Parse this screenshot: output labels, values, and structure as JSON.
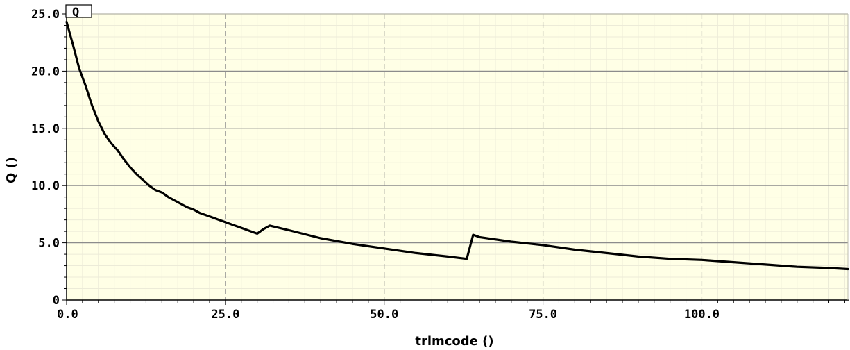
{
  "chart_data": {
    "type": "line",
    "xlabel": "trimcode ()",
    "ylabel": "Q ()",
    "xlim": [
      0,
      123
    ],
    "ylim": [
      0,
      25
    ],
    "x_ticks": [
      0,
      25,
      50,
      75,
      100
    ],
    "x_tick_labels": [
      "0.0",
      "25.0",
      "50.0",
      "75.0",
      "100.0"
    ],
    "y_ticks": [
      0,
      5,
      10,
      15,
      20,
      25
    ],
    "y_tick_labels": [
      "0",
      "5.0",
      "10.0",
      "15.0",
      "20.0",
      "25.0"
    ],
    "grid": true,
    "legend_position": "top-left",
    "series": [
      {
        "name": "Q",
        "color": "#000000",
        "x": [
          0,
          1,
          2,
          3,
          4,
          5,
          6,
          7,
          8,
          9,
          10,
          11,
          12,
          13,
          14,
          15,
          16,
          17,
          18,
          19,
          20,
          21,
          22,
          23,
          24,
          25,
          26,
          27,
          28,
          29,
          30,
          31,
          32,
          35,
          40,
          45,
          50,
          55,
          60,
          63,
          64,
          65,
          70,
          75,
          80,
          85,
          90,
          95,
          100,
          105,
          110,
          115,
          120,
          123
        ],
        "y": [
          24.3,
          22.3,
          20.2,
          18.7,
          17.0,
          15.6,
          14.5,
          13.7,
          13.1,
          12.3,
          11.6,
          11.0,
          10.5,
          10.0,
          9.6,
          9.4,
          9.0,
          8.7,
          8.4,
          8.1,
          7.9,
          7.6,
          7.4,
          7.2,
          7.0,
          6.8,
          6.6,
          6.4,
          6.2,
          6.0,
          5.8,
          6.2,
          6.5,
          6.1,
          5.4,
          4.9,
          4.5,
          4.1,
          3.8,
          3.6,
          5.7,
          5.5,
          5.1,
          4.8,
          4.4,
          4.1,
          3.8,
          3.6,
          3.5,
          3.3,
          3.1,
          2.9,
          2.8,
          2.7
        ]
      }
    ]
  },
  "legend": {
    "label": "Q"
  }
}
